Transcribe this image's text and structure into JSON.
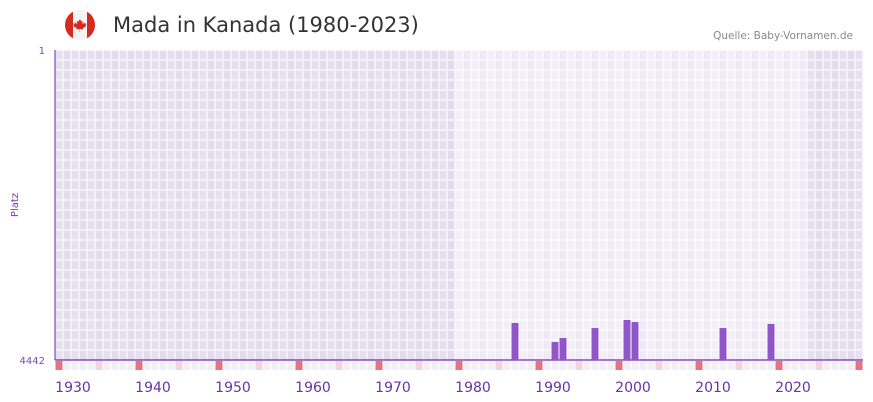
{
  "header": {
    "title": "Mada in Kanada (1980-2023)",
    "source": "Quelle: Baby-Vornamen.de",
    "flag_icon": "canada-flag-icon"
  },
  "chart_data": {
    "type": "bar",
    "title": "Mada in Kanada (1980-2023)",
    "ylabel": "Platz",
    "ylim": [
      4442,
      1
    ],
    "y_ticks": [
      "1",
      "4442"
    ],
    "xlim": [
      1928,
      2028
    ],
    "x_ticks": [
      "1930",
      "1940",
      "1950",
      "1960",
      "1970",
      "1980",
      "1990",
      "2000",
      "2010",
      "2020"
    ],
    "highlight_range": [
      1978,
      2021
    ],
    "x": [
      1985,
      1990,
      1991,
      1995,
      1999,
      2000,
      2011,
      2017
    ],
    "values": [
      3912,
      4184,
      4127,
      3984,
      3869,
      3898,
      3984,
      3926
    ],
    "colors": {
      "bar": "#8e56c8",
      "axis": "#6a2aa8",
      "decade": "#e57480",
      "halfdecade": "#f3d5df"
    },
    "grid": true
  }
}
